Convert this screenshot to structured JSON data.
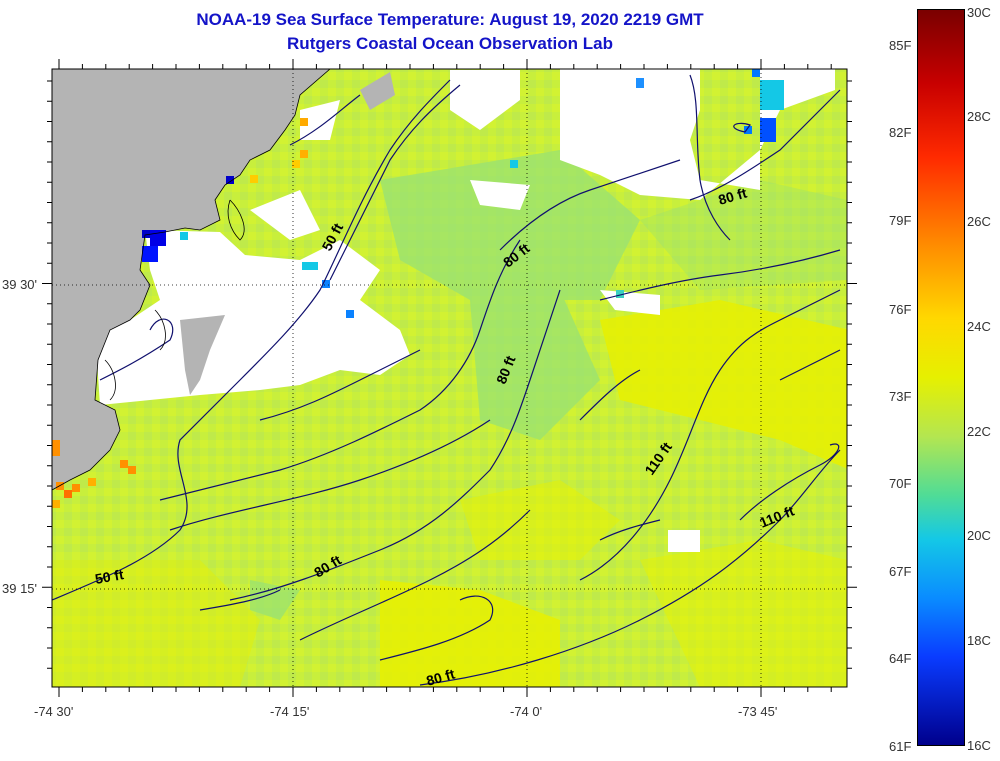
{
  "title": {
    "line1": "NOAA-19 Sea Surface Temperature:  August 19, 2020 2219 GMT",
    "line2": "Rutgers Coastal Ocean Observation Lab"
  },
  "map": {
    "x_ticks": [
      "-74 30'",
      "-74 15'",
      "-74 0'",
      "-73 45'"
    ],
    "y_ticks": [
      "39 30'",
      "39 15'"
    ],
    "contour_labels": [
      "50 ft",
      "80 ft",
      "80 ft",
      "80 ft",
      "80 ft",
      "50 ft",
      "110 ft",
      "110 ft",
      "80 ft"
    ],
    "colors": {
      "land": "#b4b4b4",
      "cloud": "#ffffff",
      "water_base": "#c8ef3c",
      "contour": "#10106e"
    }
  },
  "colorbar": {
    "fahrenheit": [
      "85F",
      "82F",
      "79F",
      "76F",
      "73F",
      "70F",
      "67F",
      "64F",
      "61F"
    ],
    "celsius": [
      "30C",
      "28C",
      "26C",
      "24C",
      "22C",
      "20C",
      "18C",
      "16C"
    ]
  }
}
